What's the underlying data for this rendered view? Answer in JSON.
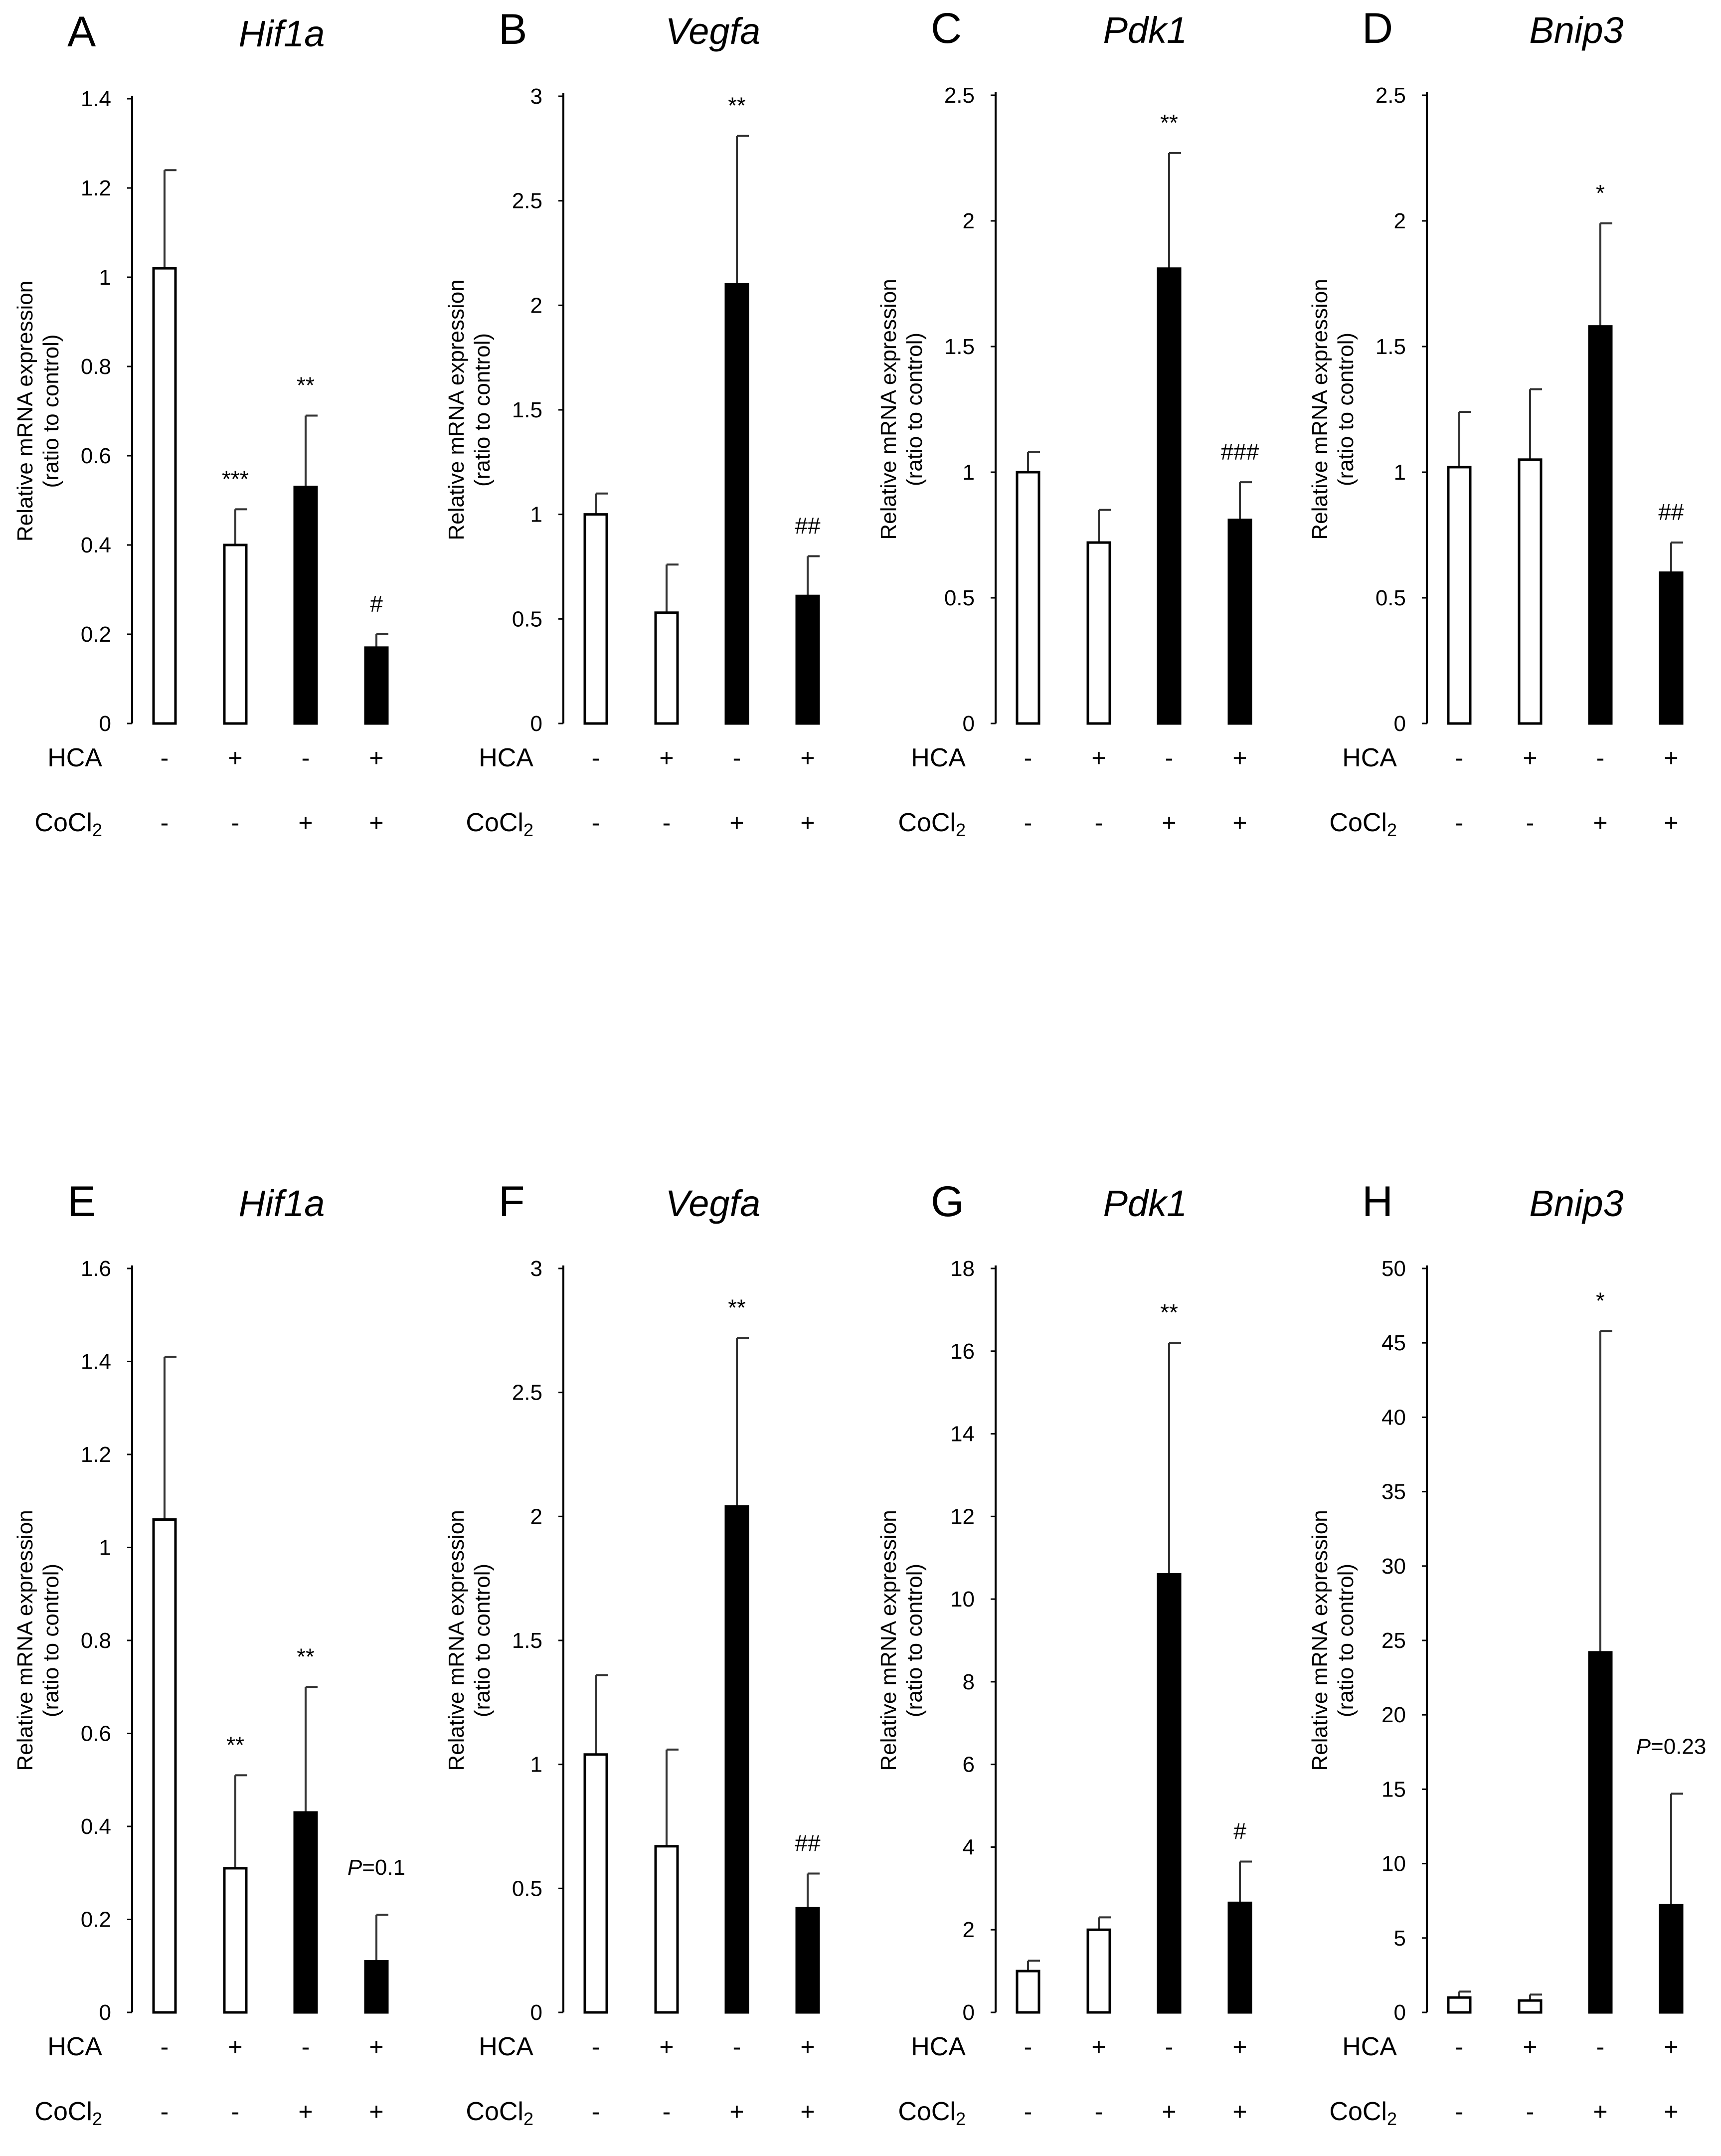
{
  "conditions_label": {
    "hca": "HCA",
    "cocl2_prefix": "CoCl",
    "cocl2_sub": "2"
  },
  "chart_data": [
    {
      "type": "bar",
      "panel": "A",
      "title": "Hif1a",
      "ylabel": "Relative mRNA expression",
      "ylabel2": "(ratio to control)",
      "ylim": [
        0,
        1.4
      ],
      "yticks": [
        "0",
        "0.2",
        "0.4",
        "0.6",
        "0.8",
        "1",
        "1.2",
        "1.4"
      ],
      "ytick_values": [
        0,
        0.2,
        0.4,
        0.6,
        0.8,
        1,
        1.2,
        1.4
      ],
      "hca": [
        "-",
        "+",
        "-",
        "+"
      ],
      "cocl2": [
        "-",
        "-",
        "+",
        "+"
      ],
      "values": [
        1.02,
        0.4,
        0.53,
        0.17
      ],
      "errors": [
        0.22,
        0.08,
        0.16,
        0.03
      ],
      "fills": [
        "open",
        "open",
        "filled",
        "filled"
      ],
      "annotations": [
        "",
        "***",
        "**",
        "#"
      ]
    },
    {
      "type": "bar",
      "panel": "B",
      "title": "Vegfa",
      "ylabel": "Relative mRNA expression",
      "ylabel2": "(ratio to control)",
      "ylim": [
        0,
        3
      ],
      "yticks": [
        "0",
        "0.5",
        "1",
        "1.5",
        "2",
        "2.5",
        "3"
      ],
      "ytick_values": [
        0,
        0.5,
        1,
        1.5,
        2,
        2.5,
        3
      ],
      "hca": [
        "-",
        "+",
        "-",
        "+"
      ],
      "cocl2": [
        "-",
        "-",
        "+",
        "+"
      ],
      "values": [
        1.0,
        0.53,
        2.1,
        0.61
      ],
      "errors": [
        0.1,
        0.23,
        0.71,
        0.19
      ],
      "fills": [
        "open",
        "open",
        "filled",
        "filled"
      ],
      "annotations": [
        "",
        "",
        "**",
        "##"
      ]
    },
    {
      "type": "bar",
      "panel": "C",
      "title": "Pdk1",
      "ylabel": "Relative mRNA expression",
      "ylabel2": "(ratio to control)",
      "ylim": [
        0,
        2.5
      ],
      "yticks": [
        "0",
        "0.5",
        "1",
        "1.5",
        "2",
        "2.5"
      ],
      "ytick_values": [
        0,
        0.5,
        1,
        1.5,
        2,
        2.5
      ],
      "hca": [
        "-",
        "+",
        "-",
        "+"
      ],
      "cocl2": [
        "-",
        "-",
        "+",
        "+"
      ],
      "values": [
        1.0,
        0.72,
        1.81,
        0.81
      ],
      "errors": [
        0.08,
        0.13,
        0.46,
        0.15
      ],
      "fills": [
        "open",
        "open",
        "filled",
        "filled"
      ],
      "annotations": [
        "",
        "",
        "**",
        "###"
      ]
    },
    {
      "type": "bar",
      "panel": "D",
      "title": "Bnip3",
      "ylabel": "Relative mRNA expression",
      "ylabel2": "(ratio to control)",
      "ylim": [
        0,
        2.5
      ],
      "yticks": [
        "0",
        "0.5",
        "1",
        "1.5",
        "2",
        "2.5"
      ],
      "ytick_values": [
        0,
        0.5,
        1,
        1.5,
        2,
        2.5
      ],
      "hca": [
        "-",
        "+",
        "-",
        "+"
      ],
      "cocl2": [
        "-",
        "-",
        "+",
        "+"
      ],
      "values": [
        1.02,
        1.05,
        1.58,
        0.6
      ],
      "errors": [
        0.22,
        0.28,
        0.41,
        0.12
      ],
      "fills": [
        "open",
        "open",
        "filled",
        "filled"
      ],
      "annotations": [
        "",
        "",
        "*",
        "##"
      ]
    },
    {
      "type": "bar",
      "panel": "E",
      "title": "Hif1a",
      "ylabel": "Relative mRNA expression",
      "ylabel2": "(ratio to control)",
      "ylim": [
        0,
        1.6
      ],
      "yticks": [
        "0",
        "0.2",
        "0.4",
        "0.6",
        "0.8",
        "1",
        "1.2",
        "1.4",
        "1.6"
      ],
      "ytick_values": [
        0,
        0.2,
        0.4,
        0.6,
        0.8,
        1,
        1.2,
        1.4,
        1.6
      ],
      "hca": [
        "-",
        "+",
        "-",
        "+"
      ],
      "cocl2": [
        "-",
        "-",
        "+",
        "+"
      ],
      "values": [
        1.06,
        0.31,
        0.43,
        0.11
      ],
      "errors": [
        0.35,
        0.2,
        0.27,
        0.1
      ],
      "fills": [
        "open",
        "open",
        "filled",
        "filled"
      ],
      "annotations": [
        "",
        "**",
        "**",
        ""
      ],
      "p_label": {
        "italic": "P",
        "rest": "=0.1"
      }
    },
    {
      "type": "bar",
      "panel": "F",
      "title": "Vegfa",
      "ylabel": "Relative mRNA expression",
      "ylabel2": "(ratio to control)",
      "ylim": [
        0,
        3
      ],
      "yticks": [
        "0",
        "0.5",
        "1",
        "1.5",
        "2",
        "2.5",
        "3"
      ],
      "ytick_values": [
        0,
        0.5,
        1,
        1.5,
        2,
        2.5,
        3
      ],
      "hca": [
        "-",
        "+",
        "-",
        "+"
      ],
      "cocl2": [
        "-",
        "-",
        "+",
        "+"
      ],
      "values": [
        1.04,
        0.67,
        2.04,
        0.42
      ],
      "errors": [
        0.32,
        0.39,
        0.68,
        0.14
      ],
      "fills": [
        "open",
        "open",
        "filled",
        "filled"
      ],
      "annotations": [
        "",
        "",
        "**",
        "##"
      ]
    },
    {
      "type": "bar",
      "panel": "G",
      "title": "Pdk1",
      "ylabel": "Relative mRNA expression",
      "ylabel2": "(ratio to control)",
      "ylim": [
        0,
        18
      ],
      "yticks": [
        "0",
        "2",
        "4",
        "6",
        "8",
        "10",
        "12",
        "14",
        "16",
        "18"
      ],
      "ytick_values": [
        0,
        2,
        4,
        6,
        8,
        10,
        12,
        14,
        16,
        18
      ],
      "hca": [
        "-",
        "+",
        "-",
        "+"
      ],
      "cocl2": [
        "-",
        "-",
        "+",
        "+"
      ],
      "values": [
        1.0,
        2.0,
        10.6,
        2.65
      ],
      "errors": [
        0.25,
        0.3,
        5.6,
        1.0
      ],
      "fills": [
        "open",
        "open",
        "filled",
        "filled"
      ],
      "annotations": [
        "",
        "",
        "**",
        "#"
      ]
    },
    {
      "type": "bar",
      "panel": "H",
      "title": "Bnip3",
      "ylabel": "Relative mRNA expression",
      "ylabel2": "(ratio to control)",
      "ylim": [
        0,
        50
      ],
      "yticks": [
        "0",
        "5",
        "10",
        "15",
        "20",
        "25",
        "30",
        "35",
        "40",
        "45",
        "50"
      ],
      "ytick_values": [
        0,
        5,
        10,
        15,
        20,
        25,
        30,
        35,
        40,
        45,
        50
      ],
      "hca": [
        "-",
        "+",
        "-",
        "+"
      ],
      "cocl2": [
        "-",
        "-",
        "+",
        "+"
      ],
      "values": [
        1.0,
        0.8,
        24.2,
        7.2
      ],
      "errors": [
        0.4,
        0.4,
        21.6,
        7.5
      ],
      "fills": [
        "open",
        "open",
        "filled",
        "filled"
      ],
      "annotations": [
        "",
        "",
        "*",
        ""
      ],
      "p_label": {
        "italic": "P",
        "rest": "=0.23"
      }
    }
  ]
}
